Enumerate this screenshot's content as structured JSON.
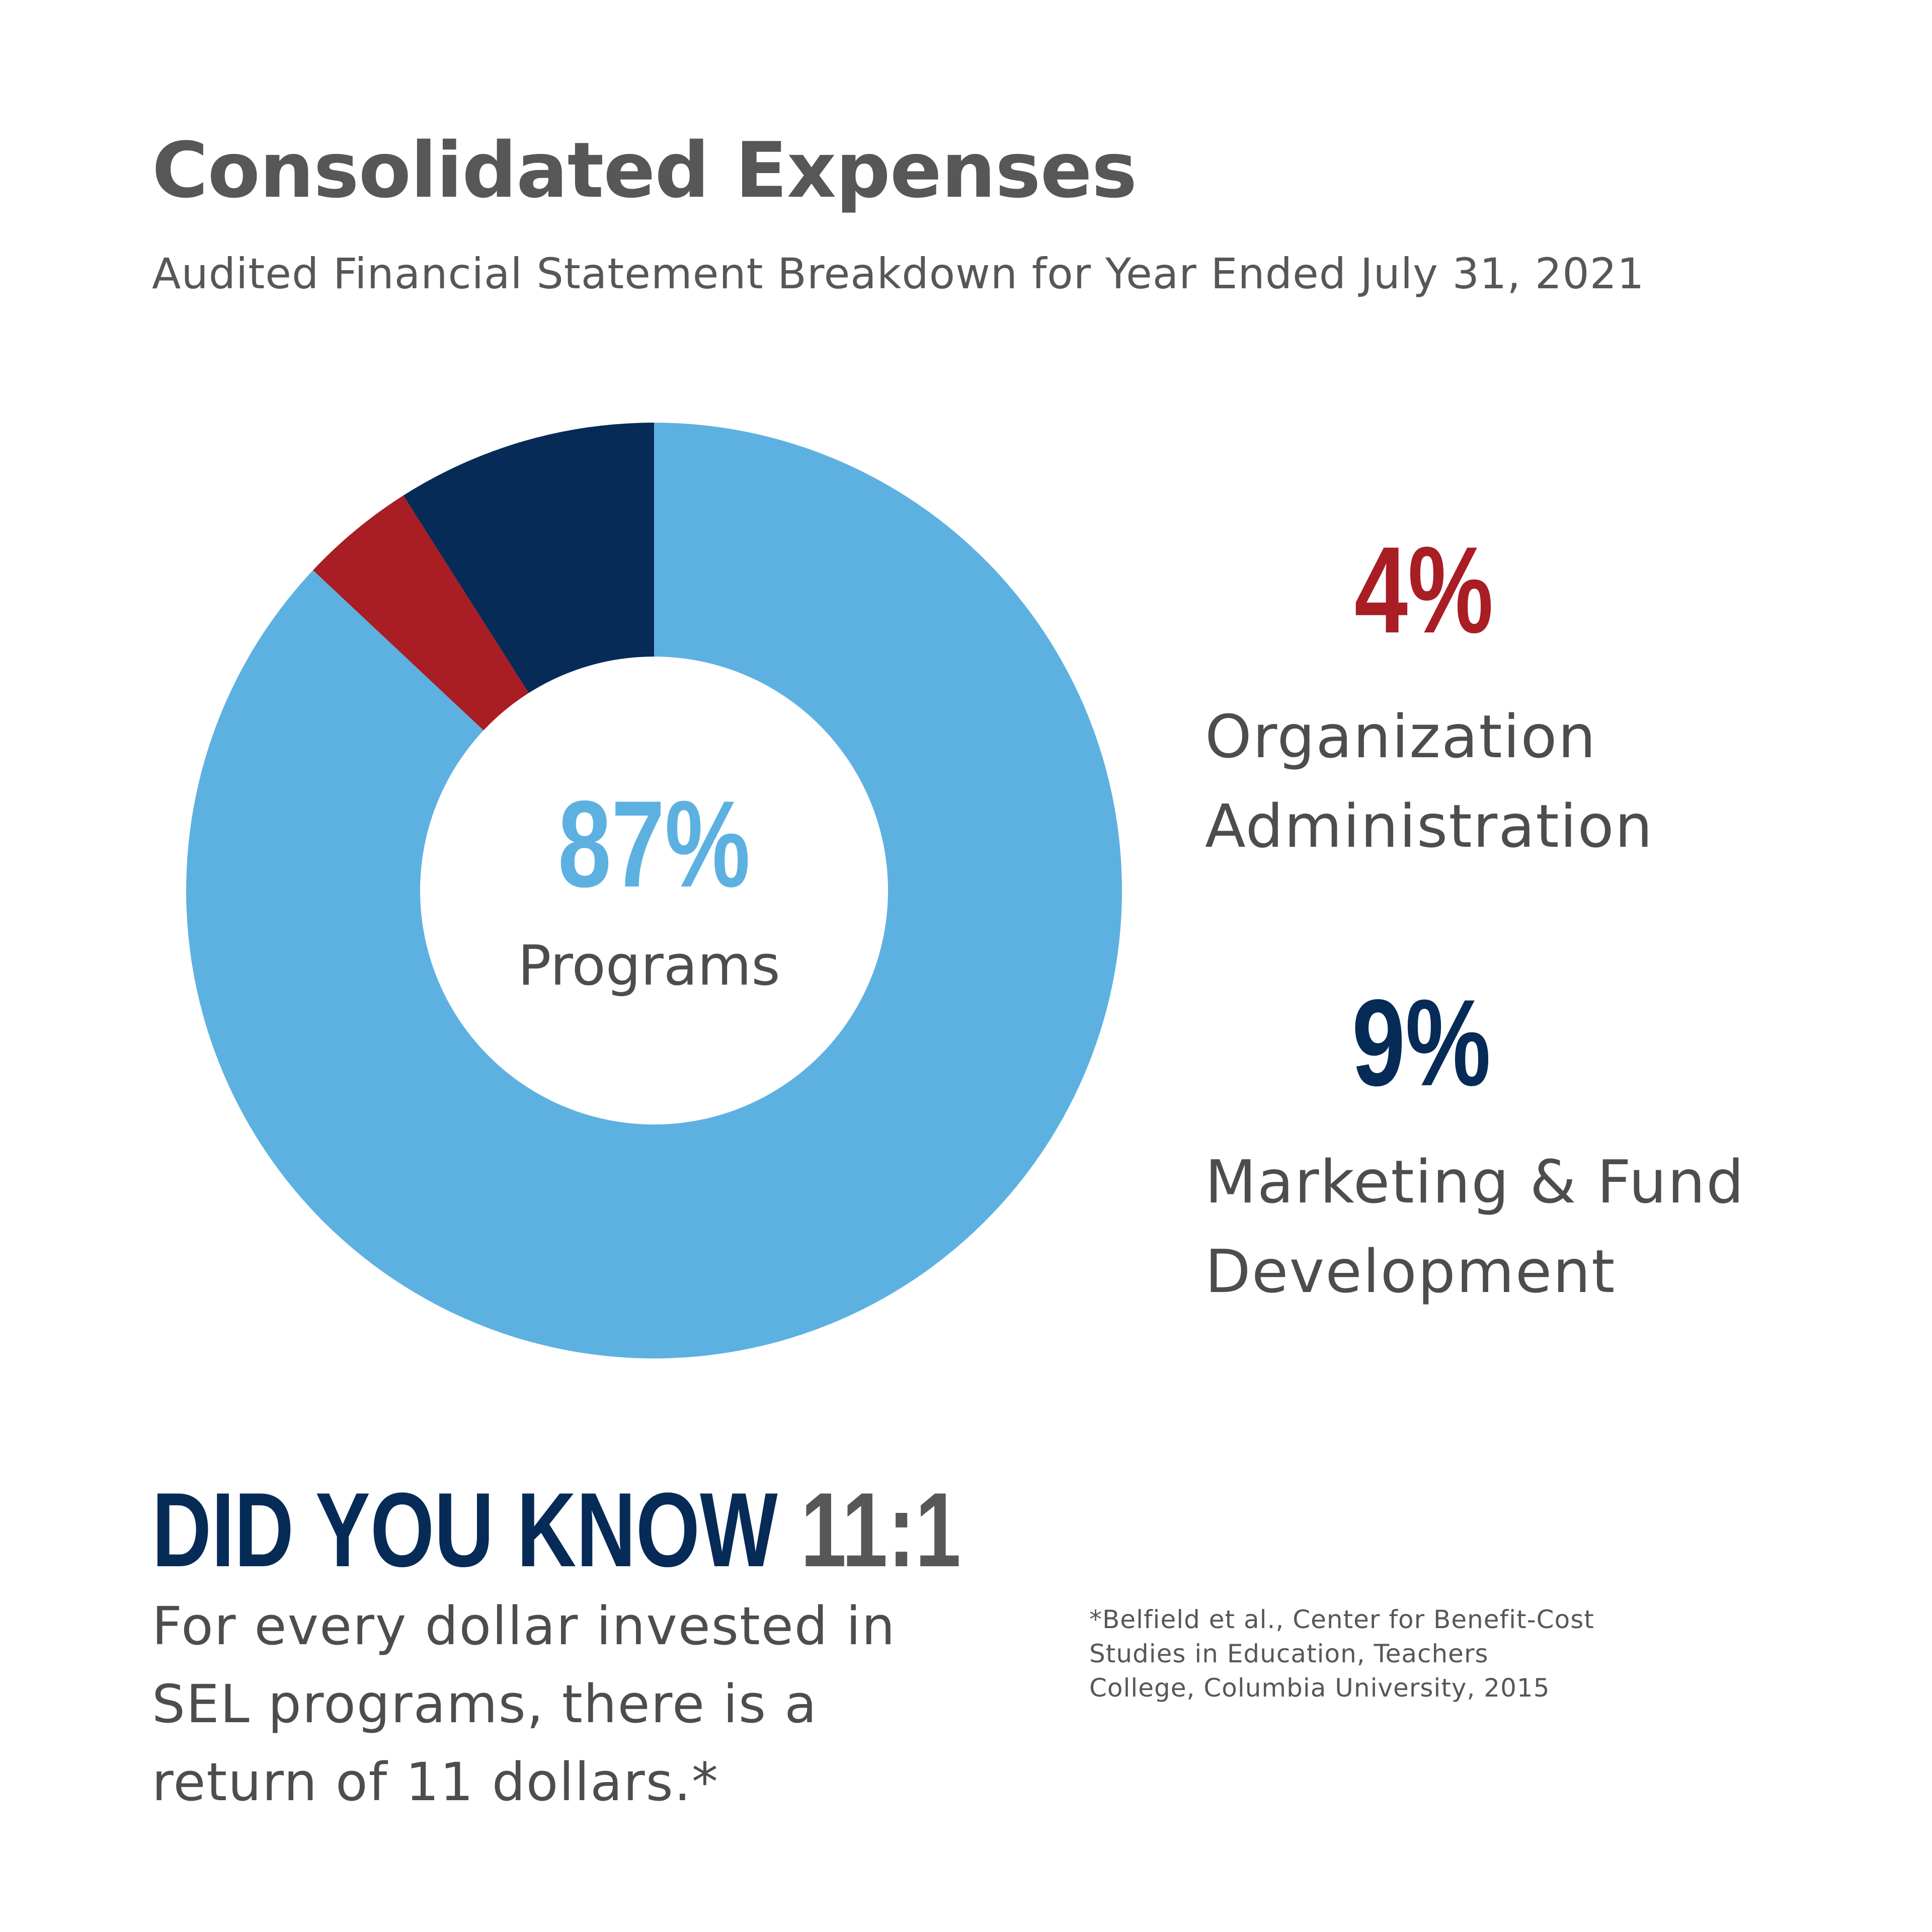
{
  "header": {
    "title": "Consolidated Expenses",
    "subtitle": "Audited Financial Statement Breakdown for Year Ended July 31, 2021"
  },
  "chart_data": {
    "type": "pie",
    "style": "donut",
    "title": "Consolidated Expenses",
    "subtitle": "Audited Financial Statement Breakdown for Year Ended July 31, 2021",
    "slices": [
      {
        "label": "Programs",
        "value": 87,
        "display": "87%",
        "color": "#5db1e1"
      },
      {
        "label": "Organization Administration",
        "value": 4,
        "display": "4%",
        "color": "#a91d25"
      },
      {
        "label": "Marketing & Fund Development",
        "value": 9,
        "display": "9%",
        "color": "#062b57"
      }
    ]
  },
  "labels": {
    "programs": {
      "pct": "87%",
      "name": "Programs"
    },
    "admin": {
      "pct": "4%",
      "line1": "Organization",
      "line2": "Administration"
    },
    "marketing": {
      "pct": "9%",
      "line1": "Marketing & Fund",
      "line2": "Development"
    }
  },
  "did_you_know": {
    "heading": "DID YOU KNOW",
    "ratio": "11:1",
    "body_lines": [
      "For every dollar invested in",
      "SEL programs, there is a",
      "return of 11 dollars.*"
    ]
  },
  "citation": {
    "lines": [
      "*Belfield et al., Center for Benefit-Cost",
      "Studies in Education, Teachers",
      "College, Columbia University, 2015"
    ]
  }
}
